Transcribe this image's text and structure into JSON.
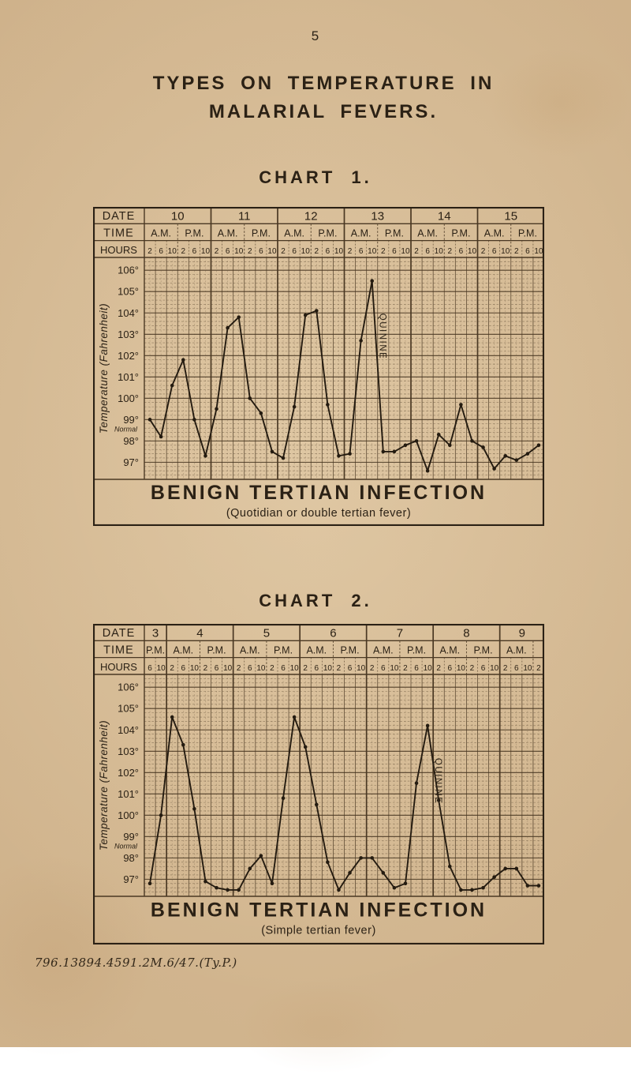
{
  "page": {
    "number": "5",
    "title_line1": "TYPES  ON  TEMPERATURE  IN",
    "title_line2": "MALARIAL  FEVERS.",
    "footer_code": "796.13894.4591.2M.6/47.(Ty.P.)"
  },
  "colors": {
    "paper": "#cfb28b",
    "ink": "#2b2115",
    "grid_line": "#4a3823",
    "curve": "#241b10"
  },
  "axis_labels": {
    "date_row": "DATE",
    "time_row": "TIME",
    "hours_row": "HOURS",
    "ylabel": "Temperature (Fahrenheit)",
    "normal_label": "Normal",
    "yticks": [
      "106°",
      "105°",
      "104°",
      "103°",
      "102°",
      "101°",
      "100°",
      "99°",
      "98°",
      "97°"
    ]
  },
  "chart_data": [
    {
      "type": "line",
      "title": "CHART  1.",
      "caption": "BENIGN  TERTIAN  INFECTION",
      "subcaption": "(Quotidian or double tertian fever)",
      "ylabel": "Temperature (Fahrenheit)",
      "ylim": [
        96.2,
        106.6
      ],
      "yticks_deg": [
        106,
        105,
        104,
        103,
        102,
        101,
        100,
        99,
        98,
        97
      ],
      "normal_deg": 98.4,
      "days": [
        {
          "date": "10",
          "sessions": [
            {
              "label": "A.M.",
              "hours": [
                "2",
                "6",
                "10"
              ]
            },
            {
              "label": "P.M.",
              "hours": [
                "2",
                "6",
                "10"
              ]
            }
          ]
        },
        {
          "date": "11",
          "sessions": [
            {
              "label": "A.M.",
              "hours": [
                "2",
                "6",
                "10"
              ]
            },
            {
              "label": "P.M.",
              "hours": [
                "2",
                "6",
                "10"
              ]
            }
          ]
        },
        {
          "date": "12",
          "sessions": [
            {
              "label": "A.M.",
              "hours": [
                "2",
                "6",
                "10"
              ]
            },
            {
              "label": "P.M.",
              "hours": [
                "2",
                "6",
                "10"
              ]
            }
          ]
        },
        {
          "date": "13",
          "sessions": [
            {
              "label": "A.M.",
              "hours": [
                "2",
                "6",
                "10"
              ]
            },
            {
              "label": "P.M.",
              "hours": [
                "2",
                "6",
                "10"
              ]
            }
          ]
        },
        {
          "date": "14",
          "sessions": [
            {
              "label": "A.M.",
              "hours": [
                "2",
                "6",
                "10"
              ]
            },
            {
              "label": "P.M.",
              "hours": [
                "2",
                "6",
                "10"
              ]
            }
          ]
        },
        {
          "date": "15",
          "sessions": [
            {
              "label": "A.M.",
              "hours": [
                "2",
                "6",
                "10"
              ]
            },
            {
              "label": "P.M.",
              "hours": [
                "2",
                "6",
                "10"
              ]
            }
          ]
        }
      ],
      "values": [
        99.0,
        98.2,
        100.6,
        101.8,
        99.0,
        97.3,
        99.5,
        103.3,
        103.8,
        100.0,
        99.3,
        97.5,
        97.2,
        99.6,
        103.9,
        104.1,
        99.7,
        97.3,
        97.4,
        102.7,
        105.5,
        97.5,
        97.5,
        97.8,
        98.0,
        96.6,
        98.3,
        97.8,
        99.7,
        98.0,
        97.7,
        96.7,
        97.3,
        97.1,
        97.4,
        97.8
      ],
      "annotation": {
        "text": "QUININE",
        "index": 20
      }
    },
    {
      "type": "line",
      "title": "CHART  2.",
      "caption": "BENIGN  TERTIAN  INFECTION",
      "subcaption": "(Simple tertian fever)",
      "ylabel": "Temperature (Fahrenheit)",
      "ylim": [
        96.2,
        106.6
      ],
      "yticks_deg": [
        106,
        105,
        104,
        103,
        102,
        101,
        100,
        99,
        98,
        97
      ],
      "normal_deg": 98.4,
      "days": [
        {
          "date": "3",
          "sessions": [
            {
              "label": "P.M.",
              "hours": [
                "6",
                "10"
              ]
            }
          ]
        },
        {
          "date": "4",
          "sessions": [
            {
              "label": "A.M.",
              "hours": [
                "2",
                "6",
                "10"
              ]
            },
            {
              "label": "P.M.",
              "hours": [
                "2",
                "6",
                "10"
              ]
            }
          ]
        },
        {
          "date": "5",
          "sessions": [
            {
              "label": "A.M.",
              "hours": [
                "2",
                "6",
                "10"
              ]
            },
            {
              "label": "P.M.",
              "hours": [
                "2",
                "6",
                "10"
              ]
            }
          ]
        },
        {
          "date": "6",
          "sessions": [
            {
              "label": "A.M.",
              "hours": [
                "2",
                "6",
                "10"
              ]
            },
            {
              "label": "P.M.",
              "hours": [
                "2",
                "6",
                "10"
              ]
            }
          ]
        },
        {
          "date": "7",
          "sessions": [
            {
              "label": "A.M.",
              "hours": [
                "2",
                "6",
                "10"
              ]
            },
            {
              "label": "P.M.",
              "hours": [
                "2",
                "6",
                "10"
              ]
            }
          ]
        },
        {
          "date": "8",
          "sessions": [
            {
              "label": "A.M.",
              "hours": [
                "2",
                "6",
                "10"
              ]
            },
            {
              "label": "P.M.",
              "hours": [
                "2",
                "6",
                "10"
              ]
            }
          ]
        },
        {
          "date": "9",
          "sessions": [
            {
              "label": "A.M.",
              "hours": [
                "2",
                "6",
                "10"
              ]
            },
            {
              "label": "",
              "hours": [
                "2"
              ]
            }
          ]
        }
      ],
      "values": [
        96.8,
        100.0,
        104.6,
        103.3,
        100.3,
        96.9,
        96.6,
        96.5,
        96.5,
        97.5,
        98.1,
        96.8,
        100.8,
        104.6,
        103.2,
        100.5,
        97.8,
        96.5,
        97.3,
        98.0,
        98.0,
        97.3,
        96.6,
        96.8,
        101.5,
        104.2,
        100.7,
        97.6,
        96.5,
        96.5,
        96.6,
        97.1,
        97.5,
        97.5,
        96.7,
        96.7
      ],
      "annotation": {
        "text": "QUININE",
        "index": 25
      }
    }
  ]
}
